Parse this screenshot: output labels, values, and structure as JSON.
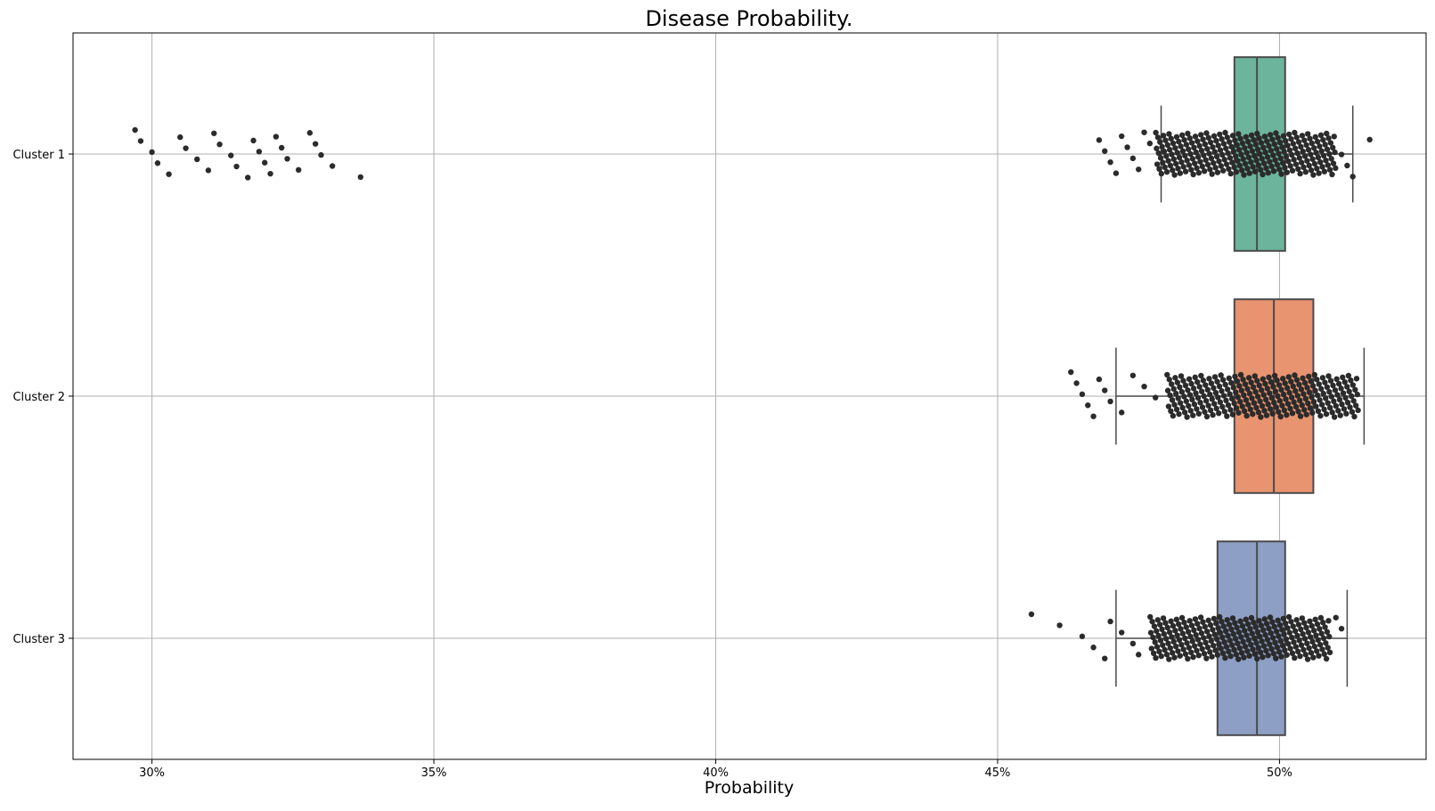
{
  "chart_data": {
    "type": "box",
    "title": "Disease Probability.",
    "xlabel": "Probability",
    "ylabel": "",
    "orientation": "horizontal",
    "xlim": [
      28.6,
      52.6
    ],
    "x_ticks": [
      30,
      35,
      40,
      45,
      50
    ],
    "x_tick_labels": [
      "30%",
      "35%",
      "40%",
      "45%",
      "50%"
    ],
    "grid": true,
    "categories": [
      "Cluster 1",
      "Cluster 2",
      "Cluster 3"
    ],
    "series": [
      {
        "name": "Cluster 1",
        "color": "#6cb59c",
        "q1": 49.2,
        "median": 49.6,
        "q3": 50.1,
        "whisker_low": 47.9,
        "whisker_high": 51.3,
        "dense_range": [
          47.8,
          51.0
        ],
        "outlier_points": [
          29.7,
          29.8,
          30.0,
          30.1,
          30.3,
          30.5,
          30.6,
          30.8,
          31.0,
          31.1,
          31.2,
          31.4,
          31.5,
          31.7,
          31.8,
          31.9,
          32.0,
          32.1,
          32.2,
          32.3,
          32.4,
          32.6,
          32.8,
          32.9,
          33.0,
          33.2,
          33.7,
          46.8,
          46.9,
          47.0,
          47.1,
          47.2,
          47.3,
          47.4,
          47.5,
          47.6,
          47.7,
          51.1,
          51.2,
          51.3,
          51.6
        ]
      },
      {
        "name": "Cluster 2",
        "color": "#e89470",
        "q1": 49.2,
        "median": 49.9,
        "q3": 50.6,
        "whisker_low": 47.1,
        "whisker_high": 51.5,
        "dense_range": [
          48.0,
          51.4
        ],
        "outlier_points": [
          46.3,
          46.4,
          46.5,
          46.6,
          46.7,
          46.8,
          46.9,
          47.0,
          47.2,
          47.4,
          47.6,
          47.8
        ]
      },
      {
        "name": "Cluster 3",
        "color": "#8e9fc5",
        "q1": 48.9,
        "median": 49.6,
        "q3": 50.1,
        "whisker_low": 47.1,
        "whisker_high": 51.2,
        "dense_range": [
          47.7,
          50.9
        ],
        "outlier_points": [
          45.6,
          46.1,
          46.5,
          46.7,
          46.9,
          47.0,
          47.2,
          47.4,
          47.5,
          51.0,
          51.1
        ]
      }
    ]
  }
}
